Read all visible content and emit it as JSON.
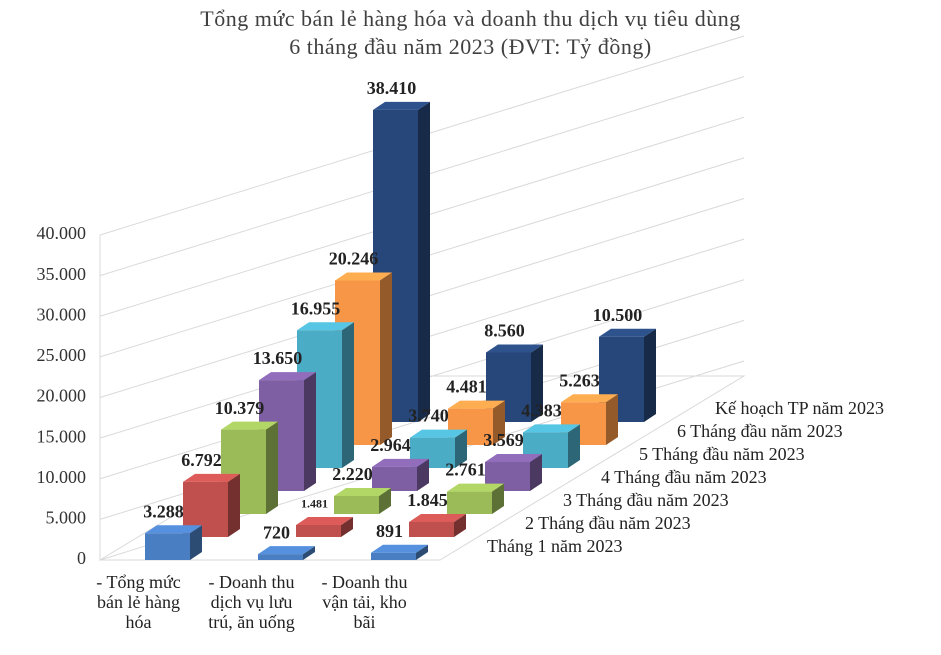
{
  "chart_data": {
    "type": "bar3d",
    "title": "Tổng mức bán lẻ hàng hóa và doanh thu dịch vụ tiêu dùng",
    "subtitle": "6 tháng đầu năm 2023 (ĐVT: Tỷ đồng)",
    "categories": [
      "- Tổng mức bán lẻ hàng hóa",
      "- Doanh thu dịch vụ lưu trú, ăn uống",
      "- Doanh thu vận tải, kho bãi"
    ],
    "series": [
      {
        "name": "Tháng 1 năm 2023",
        "color": "#4a7ec2",
        "values": [
          3288,
          720,
          891
        ],
        "value_labels": [
          "3.288",
          "720",
          "891"
        ]
      },
      {
        "name": "2 Tháng đầu năm 2023",
        "color": "#c0504d",
        "values": [
          6792,
          1481,
          1845
        ],
        "value_labels": [
          "6.792",
          "1.481",
          "1.845"
        ]
      },
      {
        "name": "3 Tháng đầu năm 2023",
        "color": "#9bbb59",
        "values": [
          10379,
          2220,
          2761
        ],
        "value_labels": [
          "10.379",
          "2.220",
          "2.761"
        ]
      },
      {
        "name": "4 Tháng đầu năm 2023",
        "color": "#7f5fa3",
        "values": [
          13650,
          2964,
          3569
        ],
        "value_labels": [
          "13.650",
          "2.964",
          "3.569"
        ]
      },
      {
        "name": "5 Tháng đầu năm 2023",
        "color": "#4bacc6",
        "values": [
          16955,
          3740,
          4383
        ],
        "value_labels": [
          "16.955",
          "3.740",
          "4.383"
        ]
      },
      {
        "name": "6 Tháng đầu năm 2023",
        "color": "#f79646",
        "values": [
          20246,
          4481,
          5263
        ],
        "value_labels": [
          "20.246",
          "4.481",
          "5.263"
        ]
      },
      {
        "name": "Kế hoạch TP năm 2023",
        "color": "#27477a",
        "values": [
          38410,
          8560,
          10500
        ],
        "value_labels": [
          "38.410",
          "8.560",
          "10.500"
        ]
      }
    ],
    "ylim": [
      0,
      40000
    ],
    "yticks": [
      0,
      {
        "value": 5000,
        "label": "5.000"
      },
      {
        "value": 10000,
        "label": "10.000"
      },
      {
        "value": 15000,
        "label": "15.000"
      },
      {
        "value": 20000,
        "label": "20.000"
      },
      {
        "value": 25000,
        "label": "25.000"
      },
      {
        "value": 30000,
        "label": "30.000"
      },
      {
        "value": 35000,
        "label": "35.000"
      },
      {
        "value": 40000,
        "label": "40.000"
      }
    ],
    "grid": true
  }
}
